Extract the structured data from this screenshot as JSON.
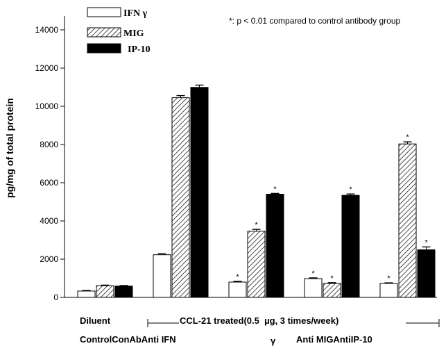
{
  "chart_data": {
    "type": "bar",
    "title": "",
    "ylabel": "pg/mg of total protein",
    "ylim": [
      0,
      14000
    ],
    "yticks": [
      0,
      2000,
      4000,
      6000,
      8000,
      10000,
      12000,
      14000
    ],
    "note": "*: p < 0.01 compared to control antibody group",
    "groups": [
      {
        "name": "Diluent Control",
        "values": [
          330,
          610,
          590
        ],
        "errors": [
          30,
          30,
          30
        ],
        "significant": [
          false,
          false,
          false
        ]
      },
      {
        "name": "ConAb",
        "values": [
          2230,
          10450,
          10990
        ],
        "errors": [
          50,
          110,
          120
        ],
        "significant": [
          false,
          false,
          false
        ]
      },
      {
        "name": "Anti IFN γ",
        "values": [
          800,
          3460,
          5400
        ],
        "errors": [
          40,
          100,
          40
        ],
        "significant": [
          true,
          true,
          true
        ]
      },
      {
        "name": "Anti MIG",
        "values": [
          980,
          730,
          5340
        ],
        "errors": [
          40,
          40,
          70
        ],
        "significant": [
          true,
          true,
          true
        ]
      },
      {
        "name": "AntiIP-10",
        "values": [
          730,
          8030,
          2490
        ],
        "errors": [
          30,
          110,
          150
        ],
        "significant": [
          true,
          true,
          true
        ]
      }
    ],
    "series": [
      {
        "name": "IFN γ",
        "pattern": "white"
      },
      {
        "name": "MIG",
        "pattern": "hatched"
      },
      {
        "name": "IP-10",
        "pattern": "black"
      }
    ],
    "bottom_labels": {
      "row1_left": "Diluent",
      "row1_bracket": "CCL-21 treated(0.5  µg, 3 times/week)",
      "row2": [
        "ControlConAbAnti IFN",
        "γ",
        "Anti MIGAntiIP-10"
      ]
    },
    "colors": {
      "bar_fill_black": "#000000",
      "bar_fill_white": "#ffffff",
      "hatch": "#000000"
    }
  }
}
